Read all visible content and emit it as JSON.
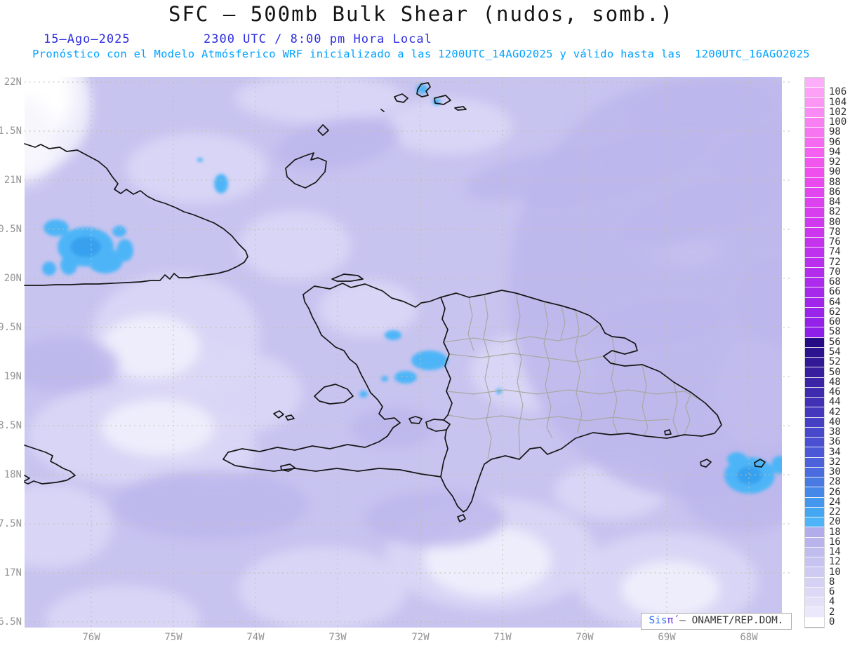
{
  "header": {
    "title": "SFC – 500mb Bulk Shear (nudos, somb.)",
    "date_label": "15–Ago–2025",
    "time_label": "2300 UTC / 8:00 pm Hora Local",
    "subtitle": "Pronóstico con el Modelo Atmósferico WRF inicializado a las 1200UTC_14AGO2025 y válido hasta las  1200UTC_16AGO2025"
  },
  "map": {
    "lat_labels": [
      "22N",
      "1.5N",
      "21N",
      "0.5N",
      "20N",
      "9.5N",
      "19N",
      "8.5N",
      "18N",
      "7.5N",
      "17N",
      "6.5N"
    ],
    "lon_labels": [
      "76W",
      "75W",
      "74W",
      "73W",
      "72W",
      "71W",
      "70W",
      "69W",
      "68W"
    ],
    "colors": {
      "background": "#c8c4f0",
      "light_patch": "#dad7f6",
      "lighter_patch": "#efeefb",
      "deep_patch": "#bcb7ec",
      "shear_20kt_patch": "#4db5f7",
      "coastline": "#161616",
      "province_border": "#a7a79e",
      "gridline": "#c1bea6",
      "axis_label": "#949494",
      "title_text": "#141414",
      "date_text": "#2d2de0",
      "subtitle_text": "#00a2ff"
    }
  },
  "colorbar": {
    "unit": "nudos",
    "ticks": [
      106,
      104,
      102,
      100,
      98,
      96,
      94,
      92,
      90,
      88,
      86,
      84,
      82,
      80,
      78,
      76,
      74,
      72,
      70,
      68,
      66,
      64,
      62,
      60,
      58,
      56,
      54,
      52,
      50,
      48,
      46,
      44,
      42,
      40,
      38,
      36,
      34,
      32,
      30,
      28,
      26,
      24,
      22,
      20,
      18,
      16,
      14,
      12,
      10,
      8,
      6,
      4,
      2,
      0
    ],
    "tick_colors": [
      "#fca1f6",
      "#fb96f5",
      "#fa8bf4",
      "#f980f3",
      "#f875f2",
      "#f66af1",
      "#f460f0",
      "#f156ef",
      "#ee4fee",
      "#e84aee",
      "#e246ee",
      "#dc42ee",
      "#d63eee",
      "#d03aee",
      "#ca37ed",
      "#c434ed",
      "#be31ed",
      "#b82fec",
      "#b22dec",
      "#ac2bec",
      "#a629eb",
      "#a027ea",
      "#9a25ea",
      "#9422e9",
      "#8d1fe8",
      "#250b84",
      "#2d138e",
      "#321996",
      "#371f9e",
      "#3b25a6",
      "#3f2bae",
      "#4231b5",
      "#4438bd",
      "#4640c4",
      "#4848cb",
      "#4a50d1",
      "#4b59d6",
      "#4b62da",
      "#4a6cde",
      "#487ae2",
      "#4588e7",
      "#4397ec",
      "#45a6f1",
      "#4db5f7",
      "#b2adea",
      "#b9b4ec",
      "#c0bcee",
      "#c7c3f0",
      "#cecaf2",
      "#d5d1f4",
      "#dcd8f6",
      "#e3e0f8",
      "#eae8fa",
      "#ffffff"
    ],
    "top_color": "#fdaef8",
    "label_color": "#2e2e2e"
  },
  "watermark": {
    "sis": "Sis",
    "pi": "π́",
    "rest": " – ONAMET/REP.DOM."
  }
}
